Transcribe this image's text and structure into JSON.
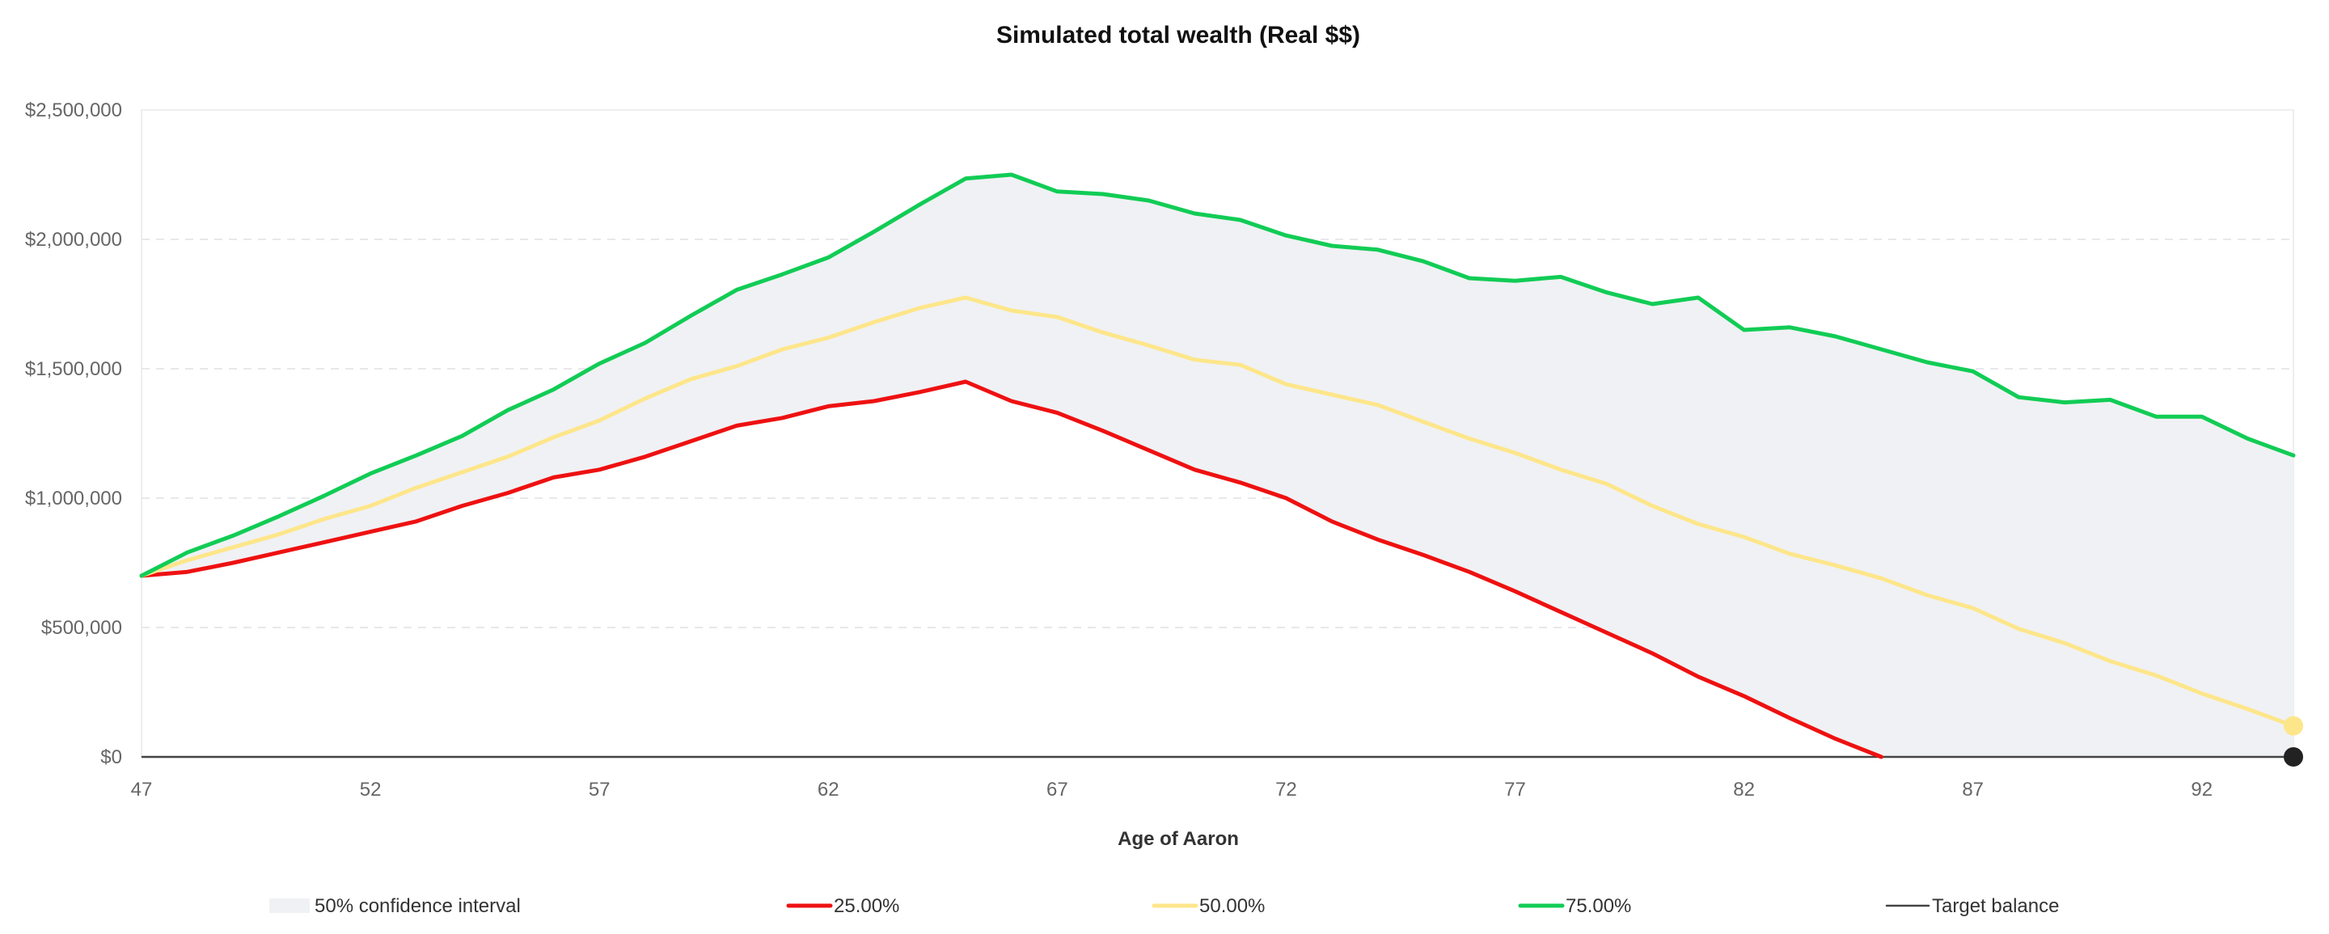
{
  "chart_data": {
    "type": "line",
    "title": "Simulated total wealth (Real $$)",
    "xlabel": "Age of Aaron",
    "ylabel": "",
    "xlim": [
      47,
      94
    ],
    "ylim": [
      0,
      2500000
    ],
    "x_ticks": [
      "47",
      "52",
      "57",
      "62",
      "67",
      "72",
      "77",
      "82",
      "87",
      "92"
    ],
    "y_ticks": [
      "$0",
      "$500,000",
      "$1,000,000",
      "$1,500,000",
      "$2,000,000",
      "$2,500,000"
    ],
    "grid": true,
    "legend_position": "bottom",
    "ages": [
      47,
      48,
      49,
      50,
      51,
      52,
      53,
      54,
      55,
      56,
      57,
      58,
      59,
      60,
      61,
      62,
      63,
      64,
      65,
      66,
      67,
      68,
      69,
      70,
      71,
      72,
      73,
      74,
      75,
      76,
      77,
      78,
      79,
      80,
      81,
      82,
      83,
      84,
      85,
      86,
      87,
      88,
      89,
      90,
      91,
      92,
      93,
      94
    ],
    "series": [
      {
        "name": "25.00%",
        "color": "#ee1111",
        "values": [
          700000,
          715000,
          750000,
          790000,
          830000,
          870000,
          910000,
          970000,
          1020000,
          1080000,
          1110000,
          1160000,
          1220000,
          1280000,
          1310000,
          1355000,
          1375000,
          1410000,
          1450000,
          1375000,
          1330000,
          1260000,
          1185000,
          1110000,
          1060000,
          1000000,
          910000,
          840000,
          780000,
          715000,
          640000,
          560000,
          480000,
          400000,
          310000,
          235000,
          150000,
          70000,
          -10000,
          null,
          null,
          null,
          null,
          null,
          null,
          null,
          null,
          null
        ]
      },
      {
        "name": "50.00%",
        "color": "#fde68a",
        "values": [
          700000,
          760000,
          810000,
          860000,
          920000,
          970000,
          1040000,
          1100000,
          1160000,
          1235000,
          1300000,
          1385000,
          1460000,
          1510000,
          1575000,
          1620000,
          1680000,
          1735000,
          1775000,
          1725000,
          1700000,
          1640000,
          1590000,
          1535000,
          1515000,
          1440000,
          1400000,
          1360000,
          1295000,
          1230000,
          1175000,
          1110000,
          1055000,
          970000,
          900000,
          850000,
          785000,
          740000,
          690000,
          625000,
          575000,
          495000,
          440000,
          370000,
          315000,
          245000,
          185000,
          120000
        ]
      },
      {
        "name": "75.00%",
        "color": "#11cc55",
        "values": [
          700000,
          790000,
          855000,
          930000,
          1010000,
          1095000,
          1165000,
          1240000,
          1340000,
          1420000,
          1520000,
          1600000,
          1705000,
          1805000,
          1865000,
          1930000,
          2030000,
          2135000,
          2235000,
          2250000,
          2185000,
          2175000,
          2150000,
          2100000,
          2075000,
          2015000,
          1975000,
          1960000,
          1915000,
          1850000,
          1840000,
          1855000,
          1795000,
          1750000,
          1775000,
          1650000,
          1660000,
          1625000,
          1575000,
          1525000,
          1490000,
          1390000,
          1370000,
          1380000,
          1315000,
          1315000,
          1230000,
          1165000
        ]
      },
      {
        "name": "Target balance",
        "color": "#444444",
        "values": [
          0,
          0
        ]
      }
    ],
    "confidence_band": {
      "name": "50% confidence interval",
      "color": "#f0f1f4",
      "between": [
        "25.00%",
        "75.00%"
      ]
    },
    "end_markers": [
      {
        "series": "50.00%",
        "color": "#fde68a"
      },
      {
        "series": "Target balance",
        "color": "#222222"
      }
    ]
  }
}
